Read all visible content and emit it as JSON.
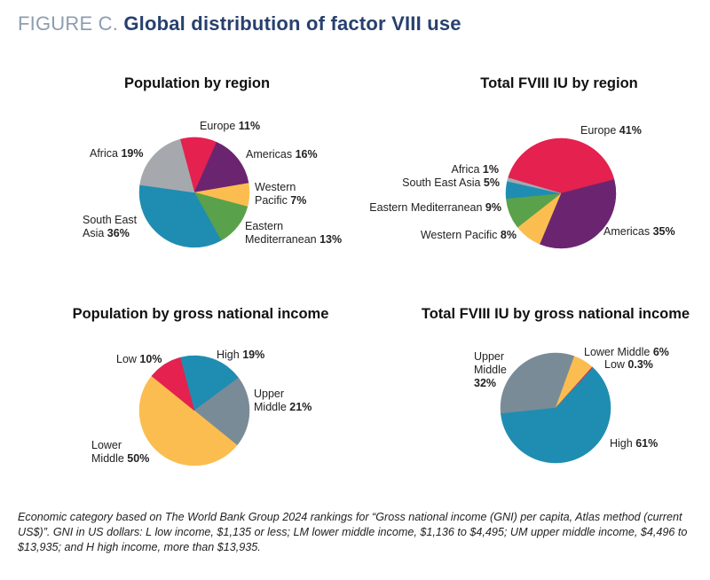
{
  "figure": {
    "label": "FIGURE C.",
    "title": "Global distribution of factor VIII use"
  },
  "footnote": "Economic category based on The World Bank Group 2024 rankings for “Gross national income (GNI) per capita, Atlas method (current US$)”. GNI in US dollars: L low income, $1,135 or less; LM lower middle income, $1,136  to $4,495; UM upper middle income, $4,496 to $13,935; and H high income, more than $13,935.",
  "chart_data": [
    {
      "type": "pie",
      "title": "Population by region",
      "slices": [
        {
          "label": "Europe",
          "value": 11,
          "text": "11%",
          "color": "#e4214f"
        },
        {
          "label": "Americas",
          "value": 16,
          "text": "16%",
          "color": "#6b2570"
        },
        {
          "label": "Western Pacific",
          "value": 7,
          "text": "7%",
          "color": "#fbbd4f"
        },
        {
          "label": "Eastern Mediterranean",
          "value": 13,
          "text": "13%",
          "color": "#5aa14b"
        },
        {
          "label": "South East Asia",
          "value": 36,
          "text": "36%",
          "color": "#1f8db1"
        },
        {
          "label": "Africa",
          "value": 19,
          "text": "19%",
          "color": "#a5a9ae"
        }
      ]
    },
    {
      "type": "pie",
      "title": "Total FVIII IU by region",
      "slices": [
        {
          "label": "Europe",
          "value": 41,
          "text": "41%",
          "color": "#e4214f"
        },
        {
          "label": "Americas",
          "value": 35,
          "text": "35%",
          "color": "#6b2570"
        },
        {
          "label": "Western Pacific",
          "value": 8,
          "text": "8%",
          "color": "#fbbd4f"
        },
        {
          "label": "Eastern Mediterranean",
          "value": 9,
          "text": "9%",
          "color": "#5aa14b"
        },
        {
          "label": "South East Asia",
          "value": 5,
          "text": "5%",
          "color": "#1f8db1"
        },
        {
          "label": "Africa",
          "value": 1,
          "text": "1%",
          "color": "#a5a9ae"
        }
      ]
    },
    {
      "type": "pie",
      "title": "Population by gross national income",
      "slices": [
        {
          "label": "High",
          "value": 19,
          "text": "19%",
          "color": "#1f8db1"
        },
        {
          "label": "Upper Middle",
          "value": 21,
          "text": "21%",
          "color": "#7a8b98"
        },
        {
          "label": "Lower Middle",
          "value": 50,
          "text": "50%",
          "color": "#fbbd4f"
        },
        {
          "label": "Low",
          "value": 10,
          "text": "10%",
          "color": "#e4214f"
        }
      ]
    },
    {
      "type": "pie",
      "title": "Total FVIII IU by gross national income",
      "slices": [
        {
          "label": "Upper Middle",
          "value": 32,
          "text": "32%",
          "color": "#7a8b98"
        },
        {
          "label": "Lower Middle",
          "value": 6,
          "text": "6%",
          "color": "#fbbd4f"
        },
        {
          "label": "Low",
          "value": 0.3,
          "text": "0.3%",
          "color": "#e4214f"
        },
        {
          "label": "High",
          "value": 61,
          "text": "61%",
          "color": "#1f8db1"
        }
      ]
    }
  ]
}
